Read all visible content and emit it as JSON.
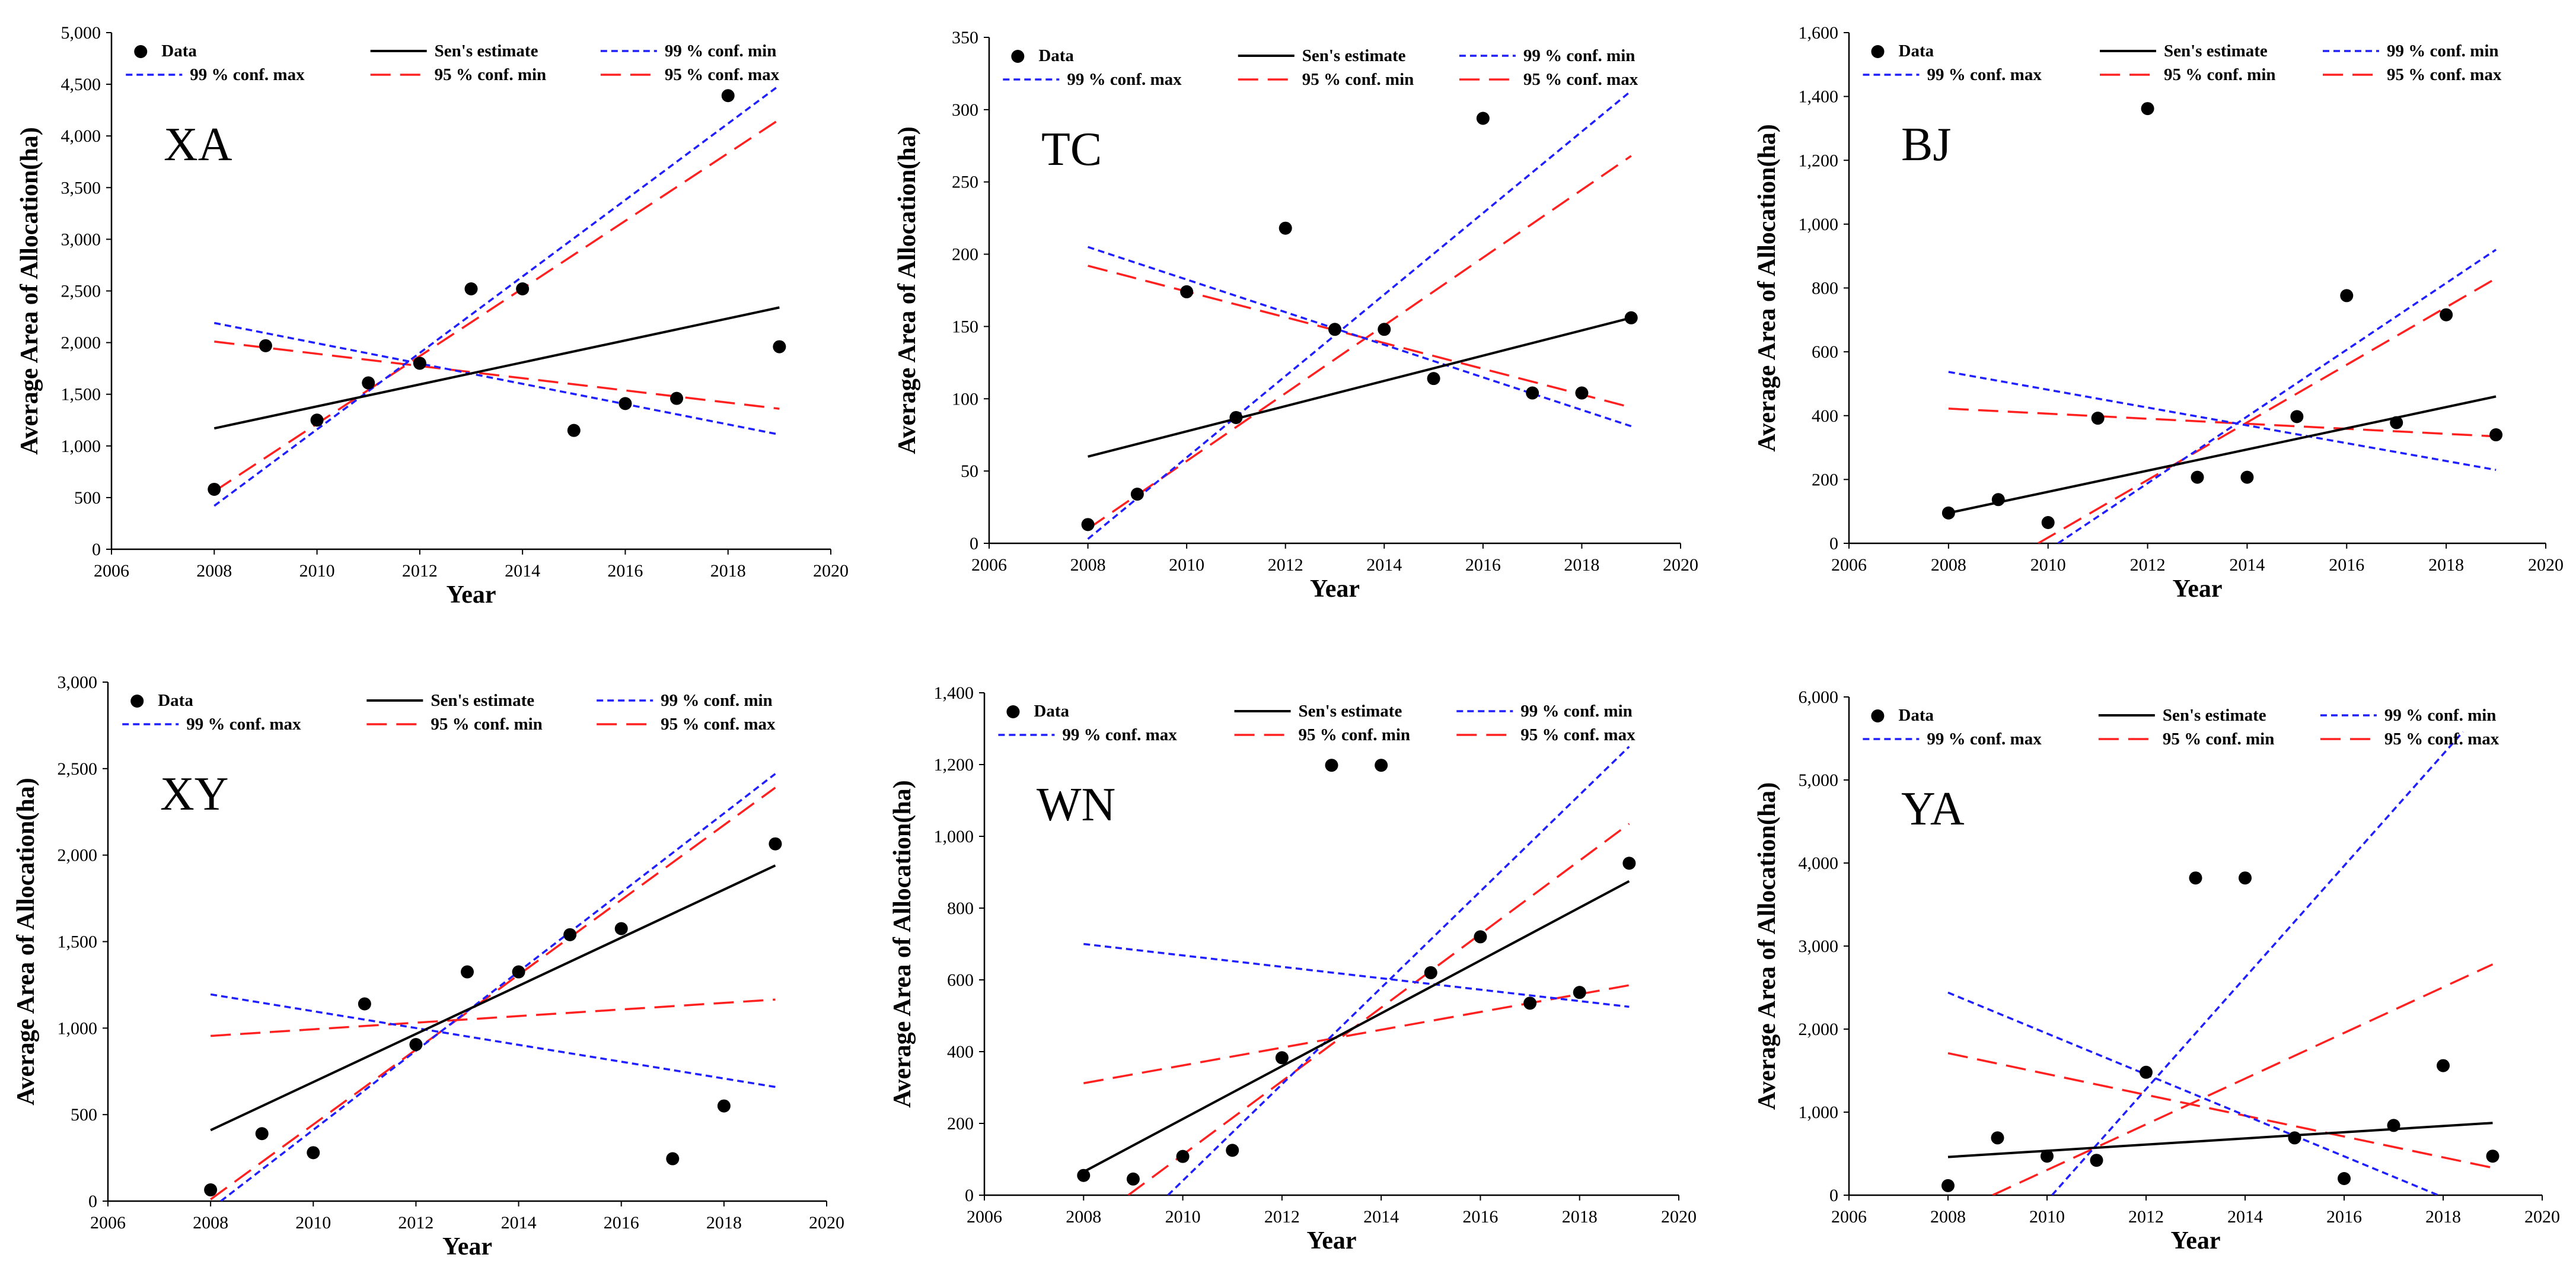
{
  "legend": {
    "data": "Data",
    "sen": "Sen's estimate",
    "c99min": "99 % conf. min",
    "c99max": "99 % conf. max",
    "c95min": "95 % conf. min",
    "c95max": "95 % conf. max"
  },
  "colors": {
    "data": "#000000",
    "sen": "#000000",
    "c99": "#1f1fff",
    "c95": "#ff2020"
  },
  "chart_data": [
    {
      "type": "scatter",
      "label": "XA",
      "xlabel": "Year",
      "ylabel": "Average Area of Allocation(ha)",
      "xlim": [
        2006,
        2020
      ],
      "xticks": [
        2006,
        2008,
        2010,
        2012,
        2014,
        2016,
        2018,
        2020
      ],
      "ylim": [
        0,
        5000
      ],
      "ystep": 500,
      "x": [
        2008,
        2009,
        2010,
        2011,
        2012,
        2013,
        2014,
        2015,
        2016,
        2017,
        2018,
        2019
      ],
      "y": [
        580,
        1970,
        1250,
        1610,
        1800,
        2520,
        2520,
        1150,
        1410,
        1460,
        4390,
        1960
      ],
      "lines": {
        "sen": [
          [
            2008,
            1170
          ],
          [
            2019,
            2340
          ]
        ],
        "c99min": [
          [
            2008,
            420
          ],
          [
            2019,
            4490
          ]
        ],
        "c99max": [
          [
            2008,
            2190
          ],
          [
            2019,
            1110
          ]
        ],
        "c95min": [
          [
            2008,
            2010
          ],
          [
            2019,
            1360
          ]
        ],
        "c95max": [
          [
            2008,
            560
          ],
          [
            2019,
            4160
          ]
        ]
      }
    },
    {
      "type": "scatter",
      "label": "TC",
      "xlabel": "Year",
      "ylabel": "Average Area of Allocation(ha)",
      "xlim": [
        2006,
        2020
      ],
      "xticks": [
        2006,
        2008,
        2010,
        2012,
        2014,
        2016,
        2018,
        2020
      ],
      "ylim": [
        0,
        350
      ],
      "ystep": 50,
      "x": [
        2008,
        2009,
        2010,
        2011,
        2012,
        2013,
        2014,
        2015,
        2016,
        2017,
        2018,
        2019
      ],
      "y": [
        13,
        34,
        174,
        87,
        218,
        148,
        148,
        114,
        294,
        104,
        104,
        156
      ],
      "lines": {
        "sen": [
          [
            2008,
            60
          ],
          [
            2019,
            156
          ]
        ],
        "c99min": [
          [
            2008,
            3
          ],
          [
            2019,
            313
          ]
        ],
        "c99max": [
          [
            2008,
            205
          ],
          [
            2019,
            81
          ]
        ],
        "c95min": [
          [
            2008,
            192
          ],
          [
            2019,
            94
          ]
        ],
        "c95max": [
          [
            2008,
            10
          ],
          [
            2019,
            268
          ]
        ]
      }
    },
    {
      "type": "scatter",
      "label": "BJ",
      "xlabel": "Year",
      "ylabel": "Average Area of Allocation(ha)",
      "xlim": [
        2006,
        2020
      ],
      "xticks": [
        2006,
        2008,
        2010,
        2012,
        2014,
        2016,
        2018,
        2020
      ],
      "ylim": [
        0,
        1600
      ],
      "ystep": 200,
      "x": [
        2008,
        2009,
        2010,
        2011,
        2012,
        2013,
        2014,
        2015,
        2016,
        2017,
        2018,
        2019
      ],
      "y": [
        95,
        137,
        65,
        392,
        1362,
        207,
        207,
        397,
        776,
        378,
        716,
        340
      ],
      "lines": {
        "sen": [
          [
            2008,
            95
          ],
          [
            2019,
            460
          ]
        ],
        "c99min": [
          [
            2010.2,
            0
          ],
          [
            2019,
            920
          ]
        ],
        "c99max": [
          [
            2008,
            537
          ],
          [
            2019,
            230
          ]
        ],
        "c95min": [
          [
            2008,
            422
          ],
          [
            2019,
            335
          ]
        ],
        "c95max": [
          [
            2009.8,
            0
          ],
          [
            2019,
            830
          ]
        ]
      }
    },
    {
      "type": "scatter",
      "label": "XY",
      "xlabel": "Year",
      "ylabel": "Average Area of Allocation(ha)",
      "xlim": [
        2006,
        2020
      ],
      "xticks": [
        2006,
        2008,
        2010,
        2012,
        2014,
        2016,
        2018,
        2020
      ],
      "ylim": [
        0,
        3000
      ],
      "ystep": 500,
      "x": [
        2008,
        2009,
        2010,
        2011,
        2012,
        2013,
        2014,
        2015,
        2016,
        2017,
        2018,
        2019
      ],
      "y": [
        65,
        390,
        280,
        1140,
        905,
        1325,
        1325,
        1540,
        1575,
        245,
        550,
        2065
      ],
      "lines": {
        "sen": [
          [
            2008,
            410
          ],
          [
            2019,
            1940
          ]
        ],
        "c99min": [
          [
            2008.2,
            0
          ],
          [
            2019,
            2470
          ]
        ],
        "c99max": [
          [
            2008,
            1195
          ],
          [
            2019,
            660
          ]
        ],
        "c95min": [
          [
            2008,
            955
          ],
          [
            2019,
            1165
          ]
        ],
        "c95max": [
          [
            2008,
            10
          ],
          [
            2019,
            2390
          ]
        ]
      }
    },
    {
      "type": "scatter",
      "label": "WN",
      "xlabel": "Year",
      "ylabel": "Average Area of Allocation(ha)",
      "xlim": [
        2006,
        2020
      ],
      "xticks": [
        2006,
        2008,
        2010,
        2012,
        2014,
        2016,
        2018,
        2020
      ],
      "ylim": [
        0,
        1400
      ],
      "ystep": 200,
      "x": [
        2008,
        2009,
        2010,
        2011,
        2012,
        2013,
        2014,
        2015,
        2016,
        2017,
        2018,
        2019
      ],
      "y": [
        55,
        45,
        108,
        125,
        383,
        1198,
        1198,
        620,
        720,
        535,
        565,
        925
      ],
      "lines": {
        "sen": [
          [
            2008,
            65
          ],
          [
            2019,
            875
          ]
        ],
        "c99min": [
          [
            2009.7,
            0
          ],
          [
            2019,
            1250
          ]
        ],
        "c99max": [
          [
            2008,
            700
          ],
          [
            2019,
            525
          ]
        ],
        "c95min": [
          [
            2008,
            312
          ],
          [
            2019,
            585
          ]
        ],
        "c95max": [
          [
            2008.9,
            0
          ],
          [
            2019,
            1035
          ]
        ]
      }
    },
    {
      "type": "scatter",
      "label": "YA",
      "xlabel": "Year",
      "ylabel": "Average Area of Allocation(ha)",
      "xlim": [
        2006,
        2020
      ],
      "xticks": [
        2006,
        2008,
        2010,
        2012,
        2014,
        2016,
        2018,
        2020
      ],
      "ylim": [
        0,
        6000
      ],
      "ystep": 1000,
      "x": [
        2008,
        2009,
        2010,
        2011,
        2012,
        2013,
        2014,
        2015,
        2016,
        2017,
        2018,
        2019
      ],
      "y": [
        115,
        690,
        470,
        420,
        1480,
        3820,
        3820,
        690,
        200,
        840,
        1560,
        470
      ],
      "lines": {
        "sen": [
          [
            2008,
            460
          ],
          [
            2019,
            870
          ]
        ],
        "c99min": [
          [
            2010.1,
            0
          ],
          [
            2018.4,
            5580
          ]
        ],
        "c99max": [
          [
            2008,
            2440
          ],
          [
            2017.9,
            0
          ]
        ],
        "c95min": [
          [
            2008,
            1710
          ],
          [
            2019,
            330
          ]
        ],
        "c95max": [
          [
            2008.9,
            0
          ],
          [
            2019,
            2780
          ]
        ]
      }
    }
  ]
}
